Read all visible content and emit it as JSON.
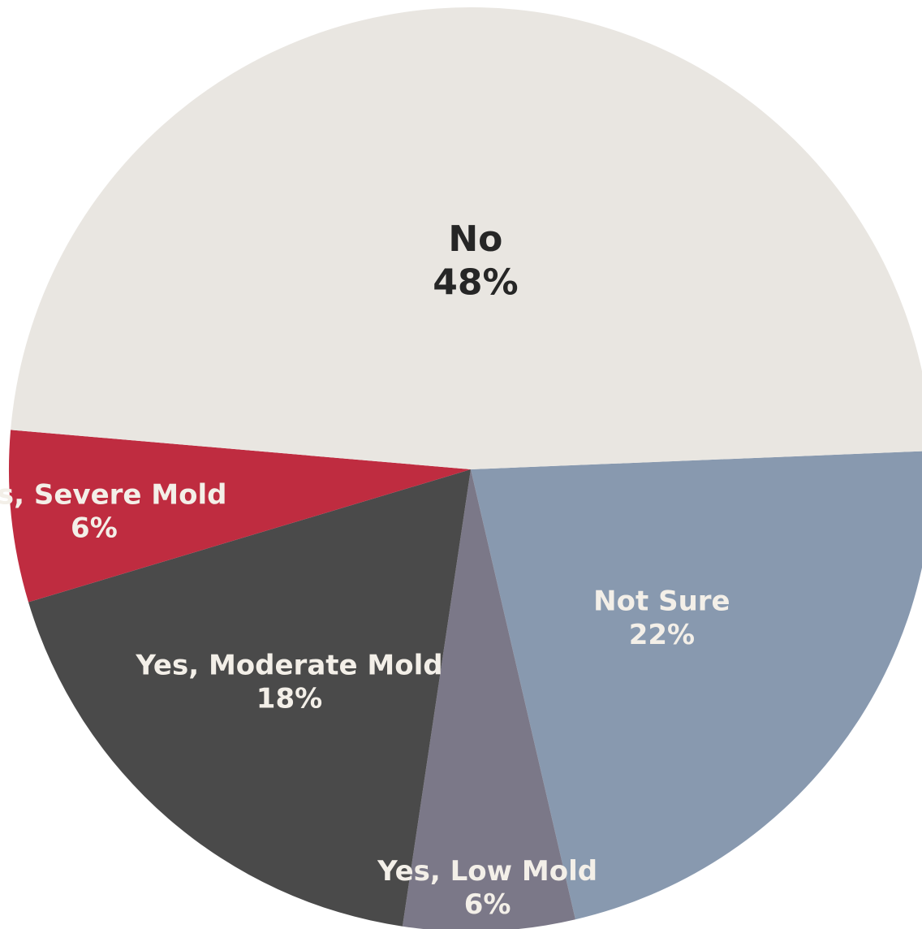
{
  "chart_data": {
    "type": "pie",
    "title": "",
    "legend": "none",
    "start_angle_deg": -2.3,
    "direction": "clockwise",
    "slices": [
      {
        "label": "Not Sure",
        "value": 22,
        "value_label": "22%",
        "color": "#8899af",
        "text_color": "#f3efe8"
      },
      {
        "label": "Yes, Low Mold",
        "value": 6,
        "value_label": "6%",
        "color": "#7b7888",
        "text_color": "#f3efe8"
      },
      {
        "label": "Yes, Moderate Mold",
        "value": 18,
        "value_label": "18%",
        "color": "#4a4a4a",
        "text_color": "#f3efe8"
      },
      {
        "label": "Yes, Severe Mold",
        "value": 6,
        "value_label": "6%",
        "color": "#bf2c40",
        "text_color": "#f3efe8"
      },
      {
        "label": "No",
        "value": 48,
        "value_label": "48%",
        "color": "#e9e6e1",
        "text_color": "#262626"
      }
    ]
  }
}
